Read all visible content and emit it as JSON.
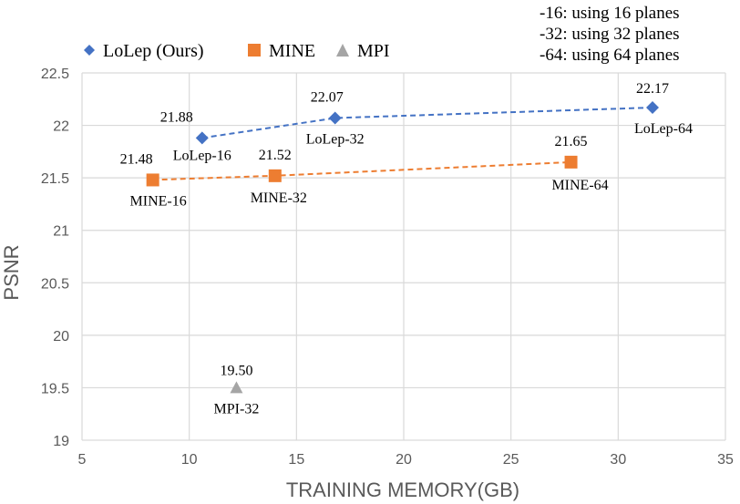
{
  "chart_data": {
    "type": "scatter",
    "xlabel": "TRAINING MEMORY(GB)",
    "ylabel": "PSNR",
    "xlim": [
      5,
      35
    ],
    "ylim": [
      19,
      22.5
    ],
    "xticks": [
      "5",
      "10",
      "15",
      "20",
      "25",
      "30",
      "35"
    ],
    "yticks": [
      "19",
      "19.5",
      "20",
      "20.5",
      "21",
      "21.5",
      "22",
      "22.5"
    ],
    "grid": true,
    "legend_position": "top-left",
    "annotations": [
      "-16: using 16 planes",
      "-32: using 32 planes",
      "-64: using 64 planes"
    ],
    "series": [
      {
        "name": "LoLep (Ours)",
        "color": "#4472C4",
        "marker": "diamond",
        "dashed_trend": true,
        "points": [
          {
            "x": 10.6,
            "y": 21.88,
            "value_label": "21.88",
            "name_label": "LoLep-16"
          },
          {
            "x": 16.8,
            "y": 22.07,
            "value_label": "22.07",
            "name_label": "LoLep-32"
          },
          {
            "x": 31.6,
            "y": 22.17,
            "value_label": "22.17",
            "name_label": "LoLep-64"
          }
        ]
      },
      {
        "name": "MINE",
        "color": "#ED7D31",
        "marker": "square",
        "dashed_trend": true,
        "points": [
          {
            "x": 8.3,
            "y": 21.48,
            "value_label": "21.48",
            "name_label": "MINE-16"
          },
          {
            "x": 14.0,
            "y": 21.52,
            "value_label": "21.52",
            "name_label": "MINE-32"
          },
          {
            "x": 27.8,
            "y": 21.65,
            "value_label": "21.65",
            "name_label": "MINE-64"
          }
        ]
      },
      {
        "name": "MPI",
        "color": "#A5A5A5",
        "marker": "triangle",
        "dashed_trend": false,
        "points": [
          {
            "x": 12.2,
            "y": 19.5,
            "value_label": "19.50",
            "name_label": "MPI-32"
          }
        ]
      }
    ]
  }
}
